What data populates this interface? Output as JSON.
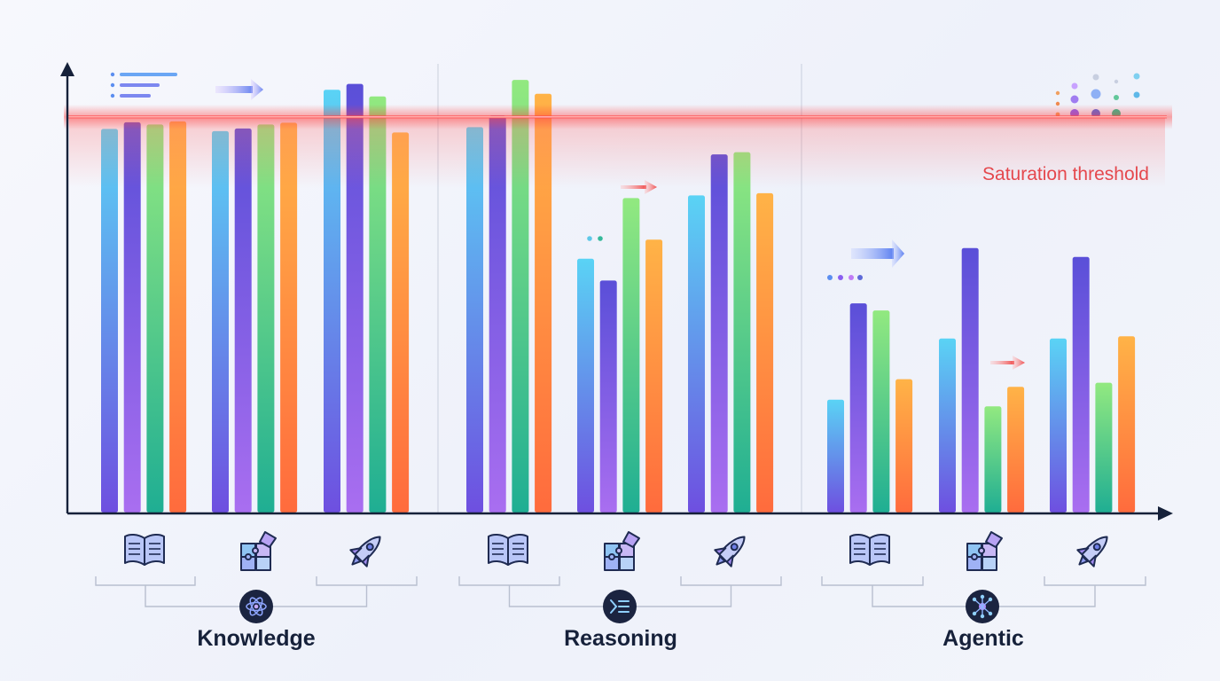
{
  "chart_data": {
    "type": "bar",
    "title": "",
    "xlabel": "",
    "ylabel": "",
    "ylim": [
      0,
      100
    ],
    "grid": false,
    "threshold": {
      "label": "Saturation threshold",
      "value": 88.7,
      "color": "#ff4d4d"
    },
    "groups": [
      {
        "name": "Knowledge",
        "center_icon": "atom-icon",
        "subgroups": [
          {
            "icon": "book-icon",
            "values": [
              86,
              87.5,
              87,
              87.7
            ]
          },
          {
            "icon": "puzzle-icon",
            "values": [
              85.5,
              86.1,
              87,
              87.4
            ]
          },
          {
            "icon": "rocket-icon",
            "values": [
              94.8,
              96.1,
              93.3,
              85.2
            ]
          }
        ]
      },
      {
        "name": "Reasoning",
        "center_icon": "terminal-icon",
        "subgroups": [
          {
            "icon": "book-icon",
            "values": [
              86.4,
              89,
              97,
              93.9
            ]
          },
          {
            "icon": "puzzle-icon",
            "values": [
              56.9,
              52,
              70.5,
              61.2
            ]
          },
          {
            "icon": "rocket-icon",
            "values": [
              71.1,
              80.3,
              80.8,
              71.6
            ]
          }
        ]
      },
      {
        "name": "Agentic",
        "center_icon": "network-icon",
        "subgroups": [
          {
            "icon": "book-icon",
            "values": [
              25.3,
              46.9,
              45.3,
              29.9
            ]
          },
          {
            "icon": "puzzle-icon",
            "values": [
              39,
              59.3,
              23.8,
              28.2
            ]
          },
          {
            "icon": "rocket-icon",
            "values": [
              39,
              57.3,
              29.1,
              39.5
            ]
          }
        ]
      }
    ],
    "series_gradients": [
      [
        "#6e4fe0",
        "#5ad3f5"
      ],
      [
        "#a96ef0",
        "#5a4fd8"
      ],
      [
        "#1fae93",
        "#92e980"
      ],
      [
        "#ff6b3d",
        "#ffb347"
      ]
    ]
  }
}
